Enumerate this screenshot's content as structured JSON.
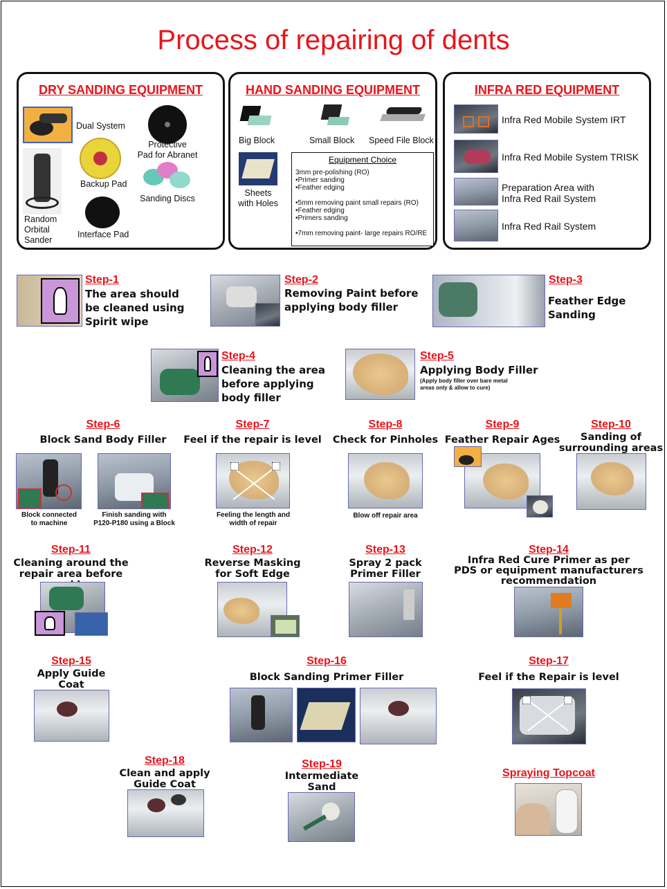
{
  "title": "Process of repairing of dents",
  "dry": {
    "title": "DRY SANDING EQUIPMENT",
    "dual_system": "Dual System",
    "protective_pad": "Protective\nPad for Abranet",
    "backup_pad": "Backup Pad",
    "sanding_discs": "Sanding Discs",
    "random_orbital": "Random\nOrbital\nSander",
    "interface_pad": "Interface Pad"
  },
  "hand": {
    "title": "HAND SANDING EQUIPMENT",
    "big_block": "Big Block",
    "small_block": "Small Block",
    "speed_file": "Speed File Block",
    "sheets": "Sheets\nwith Holes",
    "equipment_choice": {
      "heading": "Equipment Choice",
      "items": [
        "3mm pre-polishing (RO)",
        "•Primer sanding",
        "•Feather edging",
        "",
        "•5mm removing paint small repairs (RO)",
        "•Feather edging",
        "•Primers sanding",
        "",
        "•7mm removing paint- large repairs RO/RE"
      ]
    }
  },
  "infra": {
    "title": "INFRA RED EQUIPMENT",
    "items": [
      "Infra Red Mobile System IRT",
      "Infra Red Mobile System TRISK",
      "Preparation Area with\nInfra Red Rail System",
      "Infra Red Rail System"
    ]
  },
  "steps": {
    "s1": {
      "label": "Step-1",
      "desc": "The area should\nbe cleaned using\nSpirit wipe"
    },
    "s2": {
      "label": "Step-2",
      "desc": "Removing Paint before\napplying body filler"
    },
    "s3": {
      "label": "Step-3",
      "desc": "Feather Edge Sanding"
    },
    "s4": {
      "label": "Step-4",
      "desc": "Cleaning the area\nbefore applying\nbody filler"
    },
    "s5": {
      "label": "Step-5",
      "desc": "Applying Body Filler",
      "note": "(Apply body filler over bare metal\nareas only & allow to cure)"
    },
    "s6": {
      "label": "Step-6",
      "desc": "Block Sand Body Filler",
      "cap1": "Block connected\nto machine",
      "cap2": "Finish sanding with\nP120-P180 using a Block"
    },
    "s7": {
      "label": "Step-7",
      "desc": "Feel if the repair is level",
      "cap": "Feeling the length and\nwidth of repair"
    },
    "s8": {
      "label": "Step-8",
      "desc": "Check for Pinholes",
      "cap": "Blow off repair area"
    },
    "s9": {
      "label": "Step-9",
      "desc": "Feather Repair Ages"
    },
    "s10": {
      "label": "Step-10",
      "desc": "Sanding of\nsurrounding areas"
    },
    "s11": {
      "label": "Step-11",
      "desc": "Cleaning around the\nrepair area before masking"
    },
    "s12": {
      "label": "Step-12",
      "desc": "Reverse Masking\nfor Soft Edge"
    },
    "s13": {
      "label": "Step-13",
      "desc": "Spray 2 pack\nPrimer Filler"
    },
    "s14": {
      "label": "Step-14",
      "desc": "Infra Red Cure Primer as per\nPDS or equipment manufacturers\nrecommendation"
    },
    "s15": {
      "label": "Step-15",
      "desc": "Apply Guide\nCoat"
    },
    "s16": {
      "label": "Step-16",
      "desc": "Block Sanding Primer Filler"
    },
    "s17": {
      "label": "Step-17",
      "desc": "Feel if the Repair is level"
    },
    "s18": {
      "label": "Step-18",
      "desc": "Clean and apply\nGuide Coat"
    },
    "s19": {
      "label": "Step-19",
      "desc": "Intermediate\nSand"
    },
    "topcoat": {
      "label": "Spraying Topcoat"
    }
  },
  "colors": {
    "accent": "#e8141b",
    "photo_border": "#6868b0"
  }
}
